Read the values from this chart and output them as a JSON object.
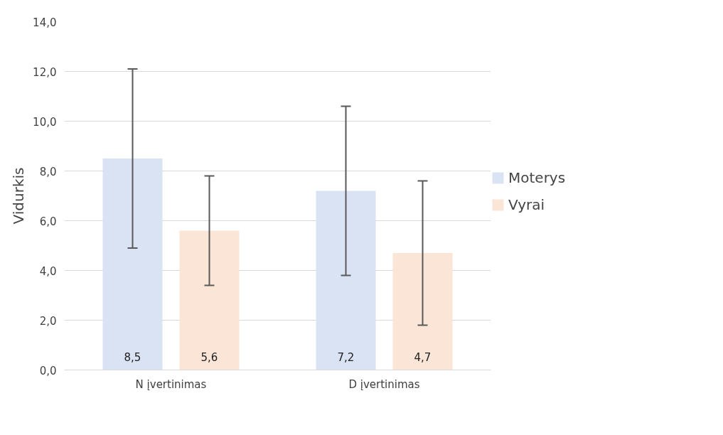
{
  "chart_data": {
    "type": "bar",
    "ylabel": "Vidurkis",
    "categories": [
      "N įvertinimas",
      "D įvertinimas"
    ],
    "series": [
      {
        "name": "Moterys",
        "color": "#dae3f3",
        "values": [
          8.5,
          7.2
        ],
        "errors": [
          3.6,
          3.4
        ],
        "value_labels": [
          "8,5",
          "7,2"
        ]
      },
      {
        "name": "Vyrai",
        "color": "#fbe5d6",
        "values": [
          5.6,
          4.7
        ],
        "errors": [
          2.2,
          2.9
        ],
        "value_labels": [
          "5,6",
          "4,7"
        ]
      }
    ],
    "ylim": [
      0,
      14
    ],
    "yticks": [
      {
        "value": 0,
        "label": "0,0"
      },
      {
        "value": 2,
        "label": "2,0"
      },
      {
        "value": 4,
        "label": "4,0"
      },
      {
        "value": 6,
        "label": "6,0"
      },
      {
        "value": 8,
        "label": "8,0"
      },
      {
        "value": 10,
        "label": "10,0"
      },
      {
        "value": 12,
        "label": "12,0"
      },
      {
        "value": 14,
        "label": "14,0"
      }
    ],
    "grid": "y",
    "legend": "right"
  }
}
